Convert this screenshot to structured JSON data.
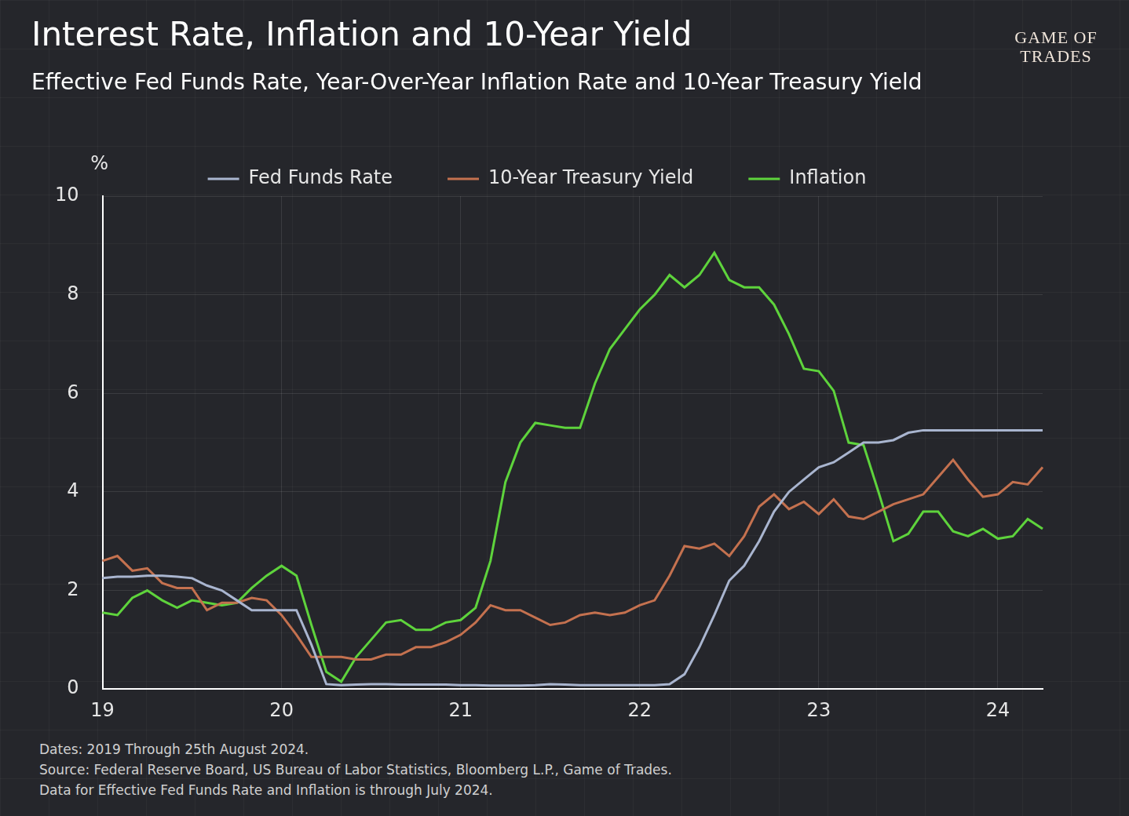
{
  "chart_data": {
    "type": "line",
    "title": "Interest Rate, Inflation and 10-Year Yield",
    "subtitle": "Effective Fed Funds Rate, Year-Over-Year Inflation Rate and 10-Year Treasury Yield",
    "y_label": "%",
    "categories": [
      "19",
      null,
      null,
      null,
      null,
      null,
      null,
      null,
      null,
      null,
      null,
      null,
      "20",
      null,
      null,
      null,
      null,
      null,
      null,
      null,
      null,
      null,
      null,
      null,
      "21",
      null,
      null,
      null,
      null,
      null,
      null,
      null,
      null,
      null,
      null,
      null,
      "22",
      null,
      null,
      null,
      null,
      null,
      null,
      null,
      null,
      null,
      null,
      null,
      "23",
      null,
      null,
      null,
      null,
      null,
      null,
      null,
      null,
      null,
      null,
      null,
      "24",
      null,
      null,
      null
    ],
    "series": [
      {
        "name": "Fed Funds Rate",
        "color": "#a9b5cf",
        "values": [
          2.25,
          2.28,
          2.28,
          2.3,
          2.3,
          2.28,
          2.25,
          2.1,
          2.0,
          1.8,
          1.6,
          1.6,
          1.6,
          1.6,
          0.9,
          0.1,
          0.08,
          0.09,
          0.1,
          0.1,
          0.09,
          0.09,
          0.09,
          0.09,
          0.08,
          0.08,
          0.07,
          0.07,
          0.07,
          0.08,
          0.1,
          0.09,
          0.08,
          0.08,
          0.08,
          0.08,
          0.08,
          0.08,
          0.1,
          0.3,
          0.85,
          1.5,
          2.2,
          2.5,
          3.0,
          3.6,
          4.0,
          4.25,
          4.5,
          4.6,
          4.8,
          5.0,
          5.0,
          5.05,
          5.2,
          5.25,
          5.25,
          5.25,
          5.25,
          5.25,
          5.25,
          5.25,
          5.25,
          5.25
        ]
      },
      {
        "name": "10-Year Treasury Yield",
        "color": "#c4714f",
        "values": [
          2.6,
          2.7,
          2.4,
          2.45,
          2.15,
          2.05,
          2.05,
          1.6,
          1.75,
          1.75,
          1.85,
          1.8,
          1.5,
          1.1,
          0.65,
          0.65,
          0.65,
          0.6,
          0.6,
          0.7,
          0.7,
          0.85,
          0.85,
          0.95,
          1.1,
          1.35,
          1.7,
          1.6,
          1.6,
          1.45,
          1.3,
          1.35,
          1.5,
          1.55,
          1.5,
          1.55,
          1.7,
          1.8,
          2.3,
          2.9,
          2.85,
          2.95,
          2.7,
          3.1,
          3.7,
          3.95,
          3.65,
          3.8,
          3.55,
          3.85,
          3.5,
          3.45,
          3.6,
          3.75,
          3.85,
          3.95,
          4.3,
          4.65,
          4.25,
          3.9,
          3.95,
          4.2,
          4.15,
          4.5
        ]
      },
      {
        "name": "Inflation",
        "color": "#5ed33c",
        "values": [
          1.55,
          1.5,
          1.85,
          2.0,
          1.8,
          1.65,
          1.8,
          1.75,
          1.7,
          1.75,
          2.05,
          2.3,
          2.5,
          2.3,
          1.3,
          0.35,
          0.15,
          0.65,
          1.0,
          1.35,
          1.4,
          1.2,
          1.2,
          1.35,
          1.4,
          1.65,
          2.6,
          4.2,
          5.0,
          5.4,
          5.35,
          5.3,
          5.3,
          6.2,
          6.9,
          7.3,
          7.7,
          8.0,
          8.4,
          8.15,
          8.4,
          8.85,
          8.3,
          8.15,
          8.15,
          7.8,
          7.2,
          6.5,
          6.45,
          6.05,
          5.0,
          4.95,
          4.0,
          3.0,
          3.15,
          3.6,
          3.6,
          3.2,
          3.1,
          3.25,
          3.05,
          3.1,
          3.45,
          3.25
        ]
      }
    ],
    "ylim": [
      0,
      10
    ],
    "yticks": [
      0,
      2,
      4,
      6,
      8,
      10
    ],
    "grid": true,
    "legend": "top"
  },
  "brand": [
    "GAME OF",
    "TRADES"
  ],
  "footnotes": [
    "Dates: 2019 Through 25th August 2024.",
    "Source: Federal Reserve Board, US Bureau of Labor Statistics, Bloomberg L.P., Game of Trades.",
    "Data for Effective Fed Funds Rate and Inflation is through July 2024."
  ]
}
